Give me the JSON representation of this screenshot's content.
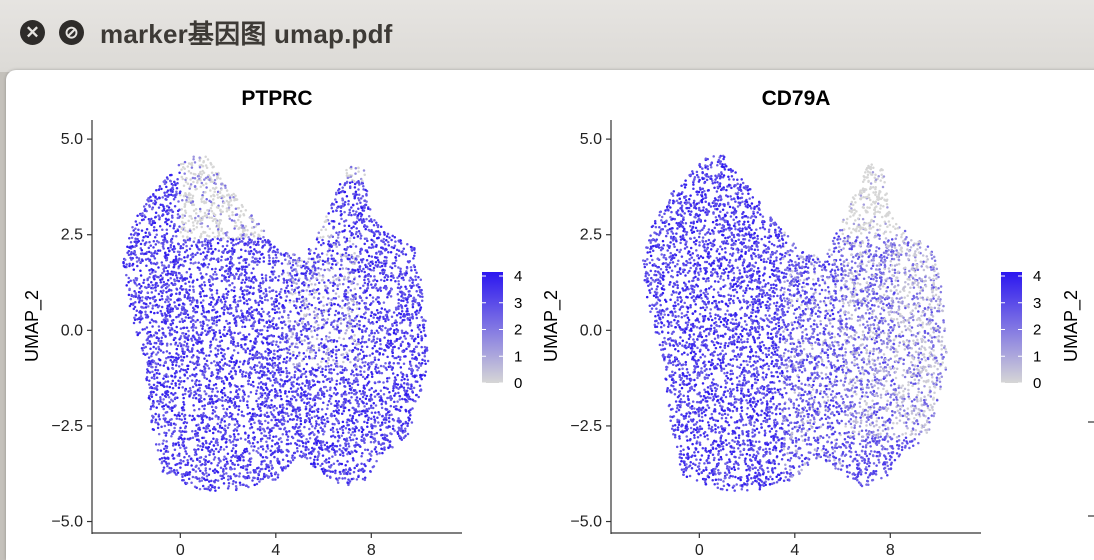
{
  "window": {
    "title": "marker基因图 umap.pdf",
    "close_glyph": "✕",
    "disabled_glyph": "⊘"
  },
  "chart_data": [
    {
      "type": "scatter",
      "title": "PTPRC",
      "ylabel": "UMAP_2",
      "xlabel": "",
      "xticks": [
        "0",
        "4",
        "8"
      ],
      "xtick_values": [
        0,
        4,
        8
      ],
      "yticks": [
        "5.0",
        "2.5",
        "0.0",
        "−2.5",
        "−5.0"
      ],
      "ytick_values": [
        5.0,
        2.5,
        0.0,
        -2.5,
        -5.0
      ],
      "xlim": [
        -3.7,
        11.8
      ],
      "ylim": [
        -5.3,
        5.5
      ],
      "legend_labels": [
        "4",
        "3",
        "2",
        "1",
        "0"
      ],
      "legend_range": [
        0,
        4
      ],
      "color_low": "#d6d6d6",
      "color_high": "#2b16f0",
      "points": 6500,
      "expression_profile": "broad-high"
    },
    {
      "type": "scatter",
      "title": "CD79A",
      "ylabel": "UMAP_2",
      "xlabel": "",
      "xticks": [
        "0",
        "4",
        "8"
      ],
      "xtick_values": [
        0,
        4,
        8
      ],
      "yticks": [
        "5.0",
        "2.5",
        "0.0",
        "−2.5",
        "−5.0"
      ],
      "ytick_values": [
        5.0,
        2.5,
        0.0,
        -2.5,
        -5.0
      ],
      "xlim": [
        -3.7,
        11.8
      ],
      "ylim": [
        -5.3,
        5.5
      ],
      "legend_labels": [
        "4",
        "3",
        "2",
        "1",
        "0"
      ],
      "legend_range": [
        0,
        4
      ],
      "color_low": "#d6d6d6",
      "color_high": "#2b16f0",
      "points": 6500,
      "expression_profile": "left-high-right-low"
    },
    {
      "type": "scatter",
      "ylabel": "UMAP_2",
      "partial": true
    }
  ]
}
